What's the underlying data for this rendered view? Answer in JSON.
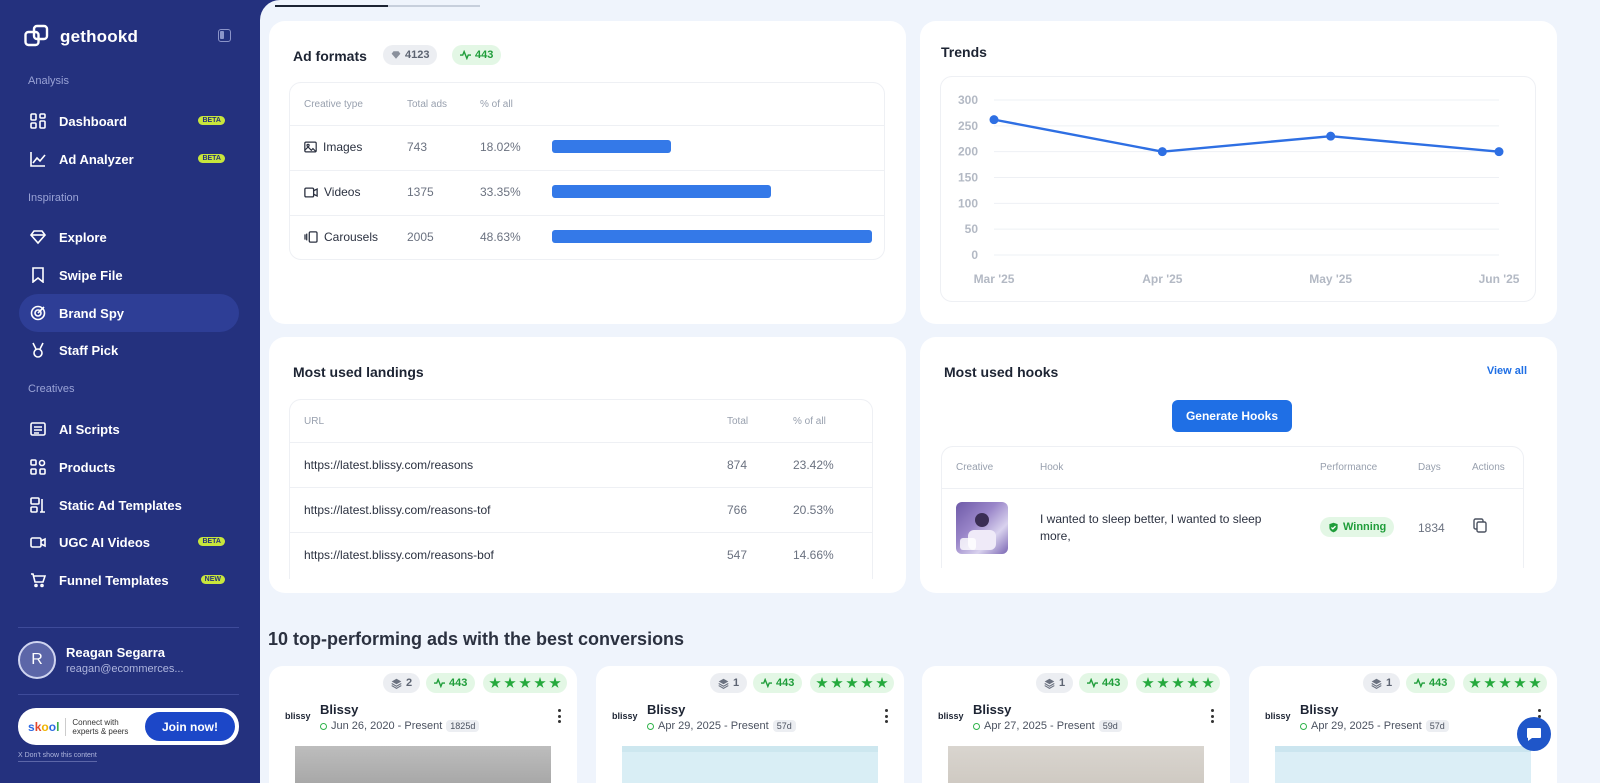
{
  "app": {
    "name": "gethookd"
  },
  "sidebar": {
    "sections": {
      "analysis": "Analysis",
      "inspiration": "Inspiration",
      "creatives": "Creatives"
    },
    "items": [
      {
        "label": "Dashboard",
        "badge": "BETA",
        "icon": "dashboard-icon"
      },
      {
        "label": "Ad Analyzer",
        "badge": "BETA",
        "icon": "chart-icon"
      },
      {
        "label": "Explore",
        "icon": "diamond-icon"
      },
      {
        "label": "Swipe File",
        "icon": "bookmark-icon"
      },
      {
        "label": "Brand Spy",
        "icon": "target-icon",
        "active": true
      },
      {
        "label": "Staff Pick",
        "icon": "medal-icon"
      },
      {
        "label": "AI Scripts",
        "icon": "script-icon"
      },
      {
        "label": "Products",
        "icon": "products-icon"
      },
      {
        "label": "Static Ad Templates",
        "icon": "template-icon"
      },
      {
        "label": "UGC AI Videos",
        "badge": "BETA",
        "icon": "video-icon"
      },
      {
        "label": "Funnel Templates",
        "badge": "NEW",
        "icon": "funnel-icon"
      }
    ],
    "user": {
      "initial": "R",
      "name": "Reagan Segarra",
      "email": "reagan@ecommerces..."
    },
    "promo": {
      "logo": "skool",
      "text": "Connect with experts & peers",
      "button": "Join now!",
      "dismiss": "X Don't show this content"
    }
  },
  "ad_formats": {
    "title": "Ad formats",
    "total": "4123",
    "active": "443",
    "headers": [
      "Creative type",
      "Total ads",
      "% of all"
    ],
    "rows": [
      {
        "type": "Images",
        "total": "743",
        "pct": "18.02%",
        "share": 18.02
      },
      {
        "type": "Videos",
        "total": "1375",
        "pct": "33.35%",
        "share": 33.35
      },
      {
        "type": "Carousels",
        "total": "2005",
        "pct": "48.63%",
        "share": 48.63
      }
    ]
  },
  "trends": {
    "title": "Trends",
    "chart_data": {
      "type": "line",
      "categories": [
        "Mar '25",
        "Apr '25",
        "May '25",
        "Jun '25"
      ],
      "values": [
        262,
        200,
        230,
        200
      ],
      "ylim": [
        0,
        300
      ],
      "yticks": [
        "300",
        "250",
        "200",
        "150",
        "100",
        "50",
        "0"
      ],
      "color": "#2e6fe3",
      "grid": true
    }
  },
  "landings": {
    "title": "Most used landings",
    "headers": [
      "URL",
      "Total",
      "% of all"
    ],
    "rows": [
      {
        "url": "https://latest.blissy.com/reasons",
        "total": "874",
        "pct": "23.42%"
      },
      {
        "url": "https://latest.blissy.com/reasons-tof",
        "total": "766",
        "pct": "20.53%"
      },
      {
        "url": "https://latest.blissy.com/reasons-bof",
        "total": "547",
        "pct": "14.66%"
      }
    ]
  },
  "hooks": {
    "title": "Most used hooks",
    "view_all": "View all",
    "generate": "Generate Hooks",
    "headers": [
      "Creative",
      "Hook",
      "Performance",
      "Days",
      "Actions"
    ],
    "rows": [
      {
        "hook": "I wanted to sleep better, I wanted to sleep more,",
        "performance": "Winning",
        "days": "1834"
      }
    ]
  },
  "top_ads": {
    "title": "10 top-performing ads with the best conversions",
    "cards": [
      {
        "layers": "2",
        "active": "443",
        "brand": "Blissy",
        "logo": "blissy",
        "date": "Jun 26, 2020 - Present",
        "days": "1825d",
        "rating": 5
      },
      {
        "layers": "1",
        "active": "443",
        "brand": "Blissy",
        "logo": "blissy",
        "date": "Apr 29, 2025 - Present",
        "days": "57d",
        "rating": 5
      },
      {
        "layers": "1",
        "active": "443",
        "brand": "Blissy",
        "logo": "blissy",
        "date": "Apr 27, 2025 - Present",
        "days": "59d",
        "rating": 5
      },
      {
        "layers": "1",
        "active": "443",
        "brand": "Blissy",
        "logo": "blissy",
        "date": "Apr 29, 2025 - Present",
        "days": "57d",
        "rating": 5
      }
    ]
  }
}
